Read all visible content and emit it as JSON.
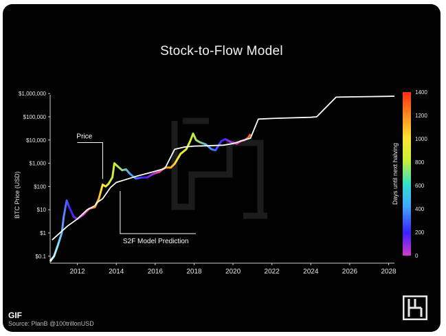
{
  "gif_badge": "GIF",
  "source": "Source: PlanB @100trillonUSD",
  "logo_icon": "h-logo-icon",
  "chart_data": {
    "type": "line",
    "title": "Stock-to-Flow Model",
    "xlabel": "",
    "ylabel": "BTC Price (USD)",
    "y_scale": "log",
    "ylim": [
      0.05,
      2000000
    ],
    "xlim": [
      2010.6,
      2028.3
    ],
    "x_ticks": [
      "2012",
      "2014",
      "2016",
      "2018",
      "2020",
      "2022",
      "2024",
      "2026",
      "2028"
    ],
    "y_ticks": [
      "$0.1",
      "$1",
      "$10",
      "$100",
      "$1,000",
      "$10,000",
      "$100,000",
      "$1,000,000"
    ],
    "grid": false,
    "annotations": [
      {
        "text": "Price",
        "x": 2013.3,
        "y": 150
      },
      {
        "text": "S2F Model Prediction",
        "x": 2014.2,
        "y": 110
      }
    ],
    "colorbar": {
      "label": "Days until next halving",
      "ticks": [
        "0",
        "200",
        "400",
        "600",
        "800",
        "1000",
        "1200",
        "1400"
      ],
      "colors": [
        "#d63ac9",
        "#3a20ff",
        "#3fa8ff",
        "#33e0c8",
        "#c6f03a",
        "#ffe633",
        "#ff8a1f",
        "#ff2e14"
      ]
    },
    "series": [
      {
        "x": [
          2010.7,
          2011.5,
          2012.0,
          2012.5,
          2012.9,
          2013.0,
          2013.3,
          2013.7,
          2014.0,
          2014.5,
          2015.0,
          2015.5,
          2016.0,
          2016.5,
          2017.0,
          2017.5,
          2018.0,
          2018.5,
          2019.0,
          2019.5,
          2020.0,
          2020.4,
          2020.9,
          2021.3,
          2022.0,
          2023.0,
          2024.0,
          2024.3,
          2025.3,
          2026.0,
          2027.0,
          2028.0,
          2028.3
        ],
        "values": [
          0.5,
          2,
          4,
          10,
          15,
          20,
          30,
          90,
          150,
          200,
          270,
          350,
          450,
          600,
          4000,
          5000,
          5500,
          5600,
          5800,
          6000,
          7000,
          9000,
          12000,
          80000,
          85000,
          90000,
          95000,
          100000,
          700000,
          720000,
          740000,
          760000,
          770000
        ]
      },
      {
        "x": [
          2010.6,
          2010.8,
          2011.0,
          2011.2,
          2011.3,
          2011.45,
          2011.6,
          2011.8,
          2012.0,
          2012.3,
          2012.6,
          2012.9,
          2013.1,
          2013.3,
          2013.45,
          2013.6,
          2013.8,
          2013.9,
          2014.1,
          2014.3,
          2014.5,
          2014.7,
          2015.0,
          2015.3,
          2015.6,
          2015.9,
          2016.2,
          2016.5,
          2016.8,
          2017.0,
          2017.3,
          2017.6,
          2017.8,
          2017.95,
          2018.1,
          2018.3,
          2018.6,
          2018.9,
          2019.1,
          2019.4,
          2019.6,
          2019.9,
          2020.2,
          2020.4,
          2020.6,
          2020.8,
          2020.9
        ],
        "values": [
          0.06,
          0.1,
          0.3,
          1,
          5,
          25,
          12,
          5,
          4,
          6,
          11,
          13,
          30,
          120,
          100,
          130,
          250,
          1000,
          700,
          500,
          550,
          350,
          220,
          240,
          250,
          350,
          420,
          650,
          650,
          950,
          2500,
          4000,
          9000,
          19000,
          10000,
          8000,
          6500,
          4000,
          3600,
          9000,
          11000,
          8000,
          7000,
          9000,
          10000,
          13000,
          18000
        ]
      }
    ]
  }
}
